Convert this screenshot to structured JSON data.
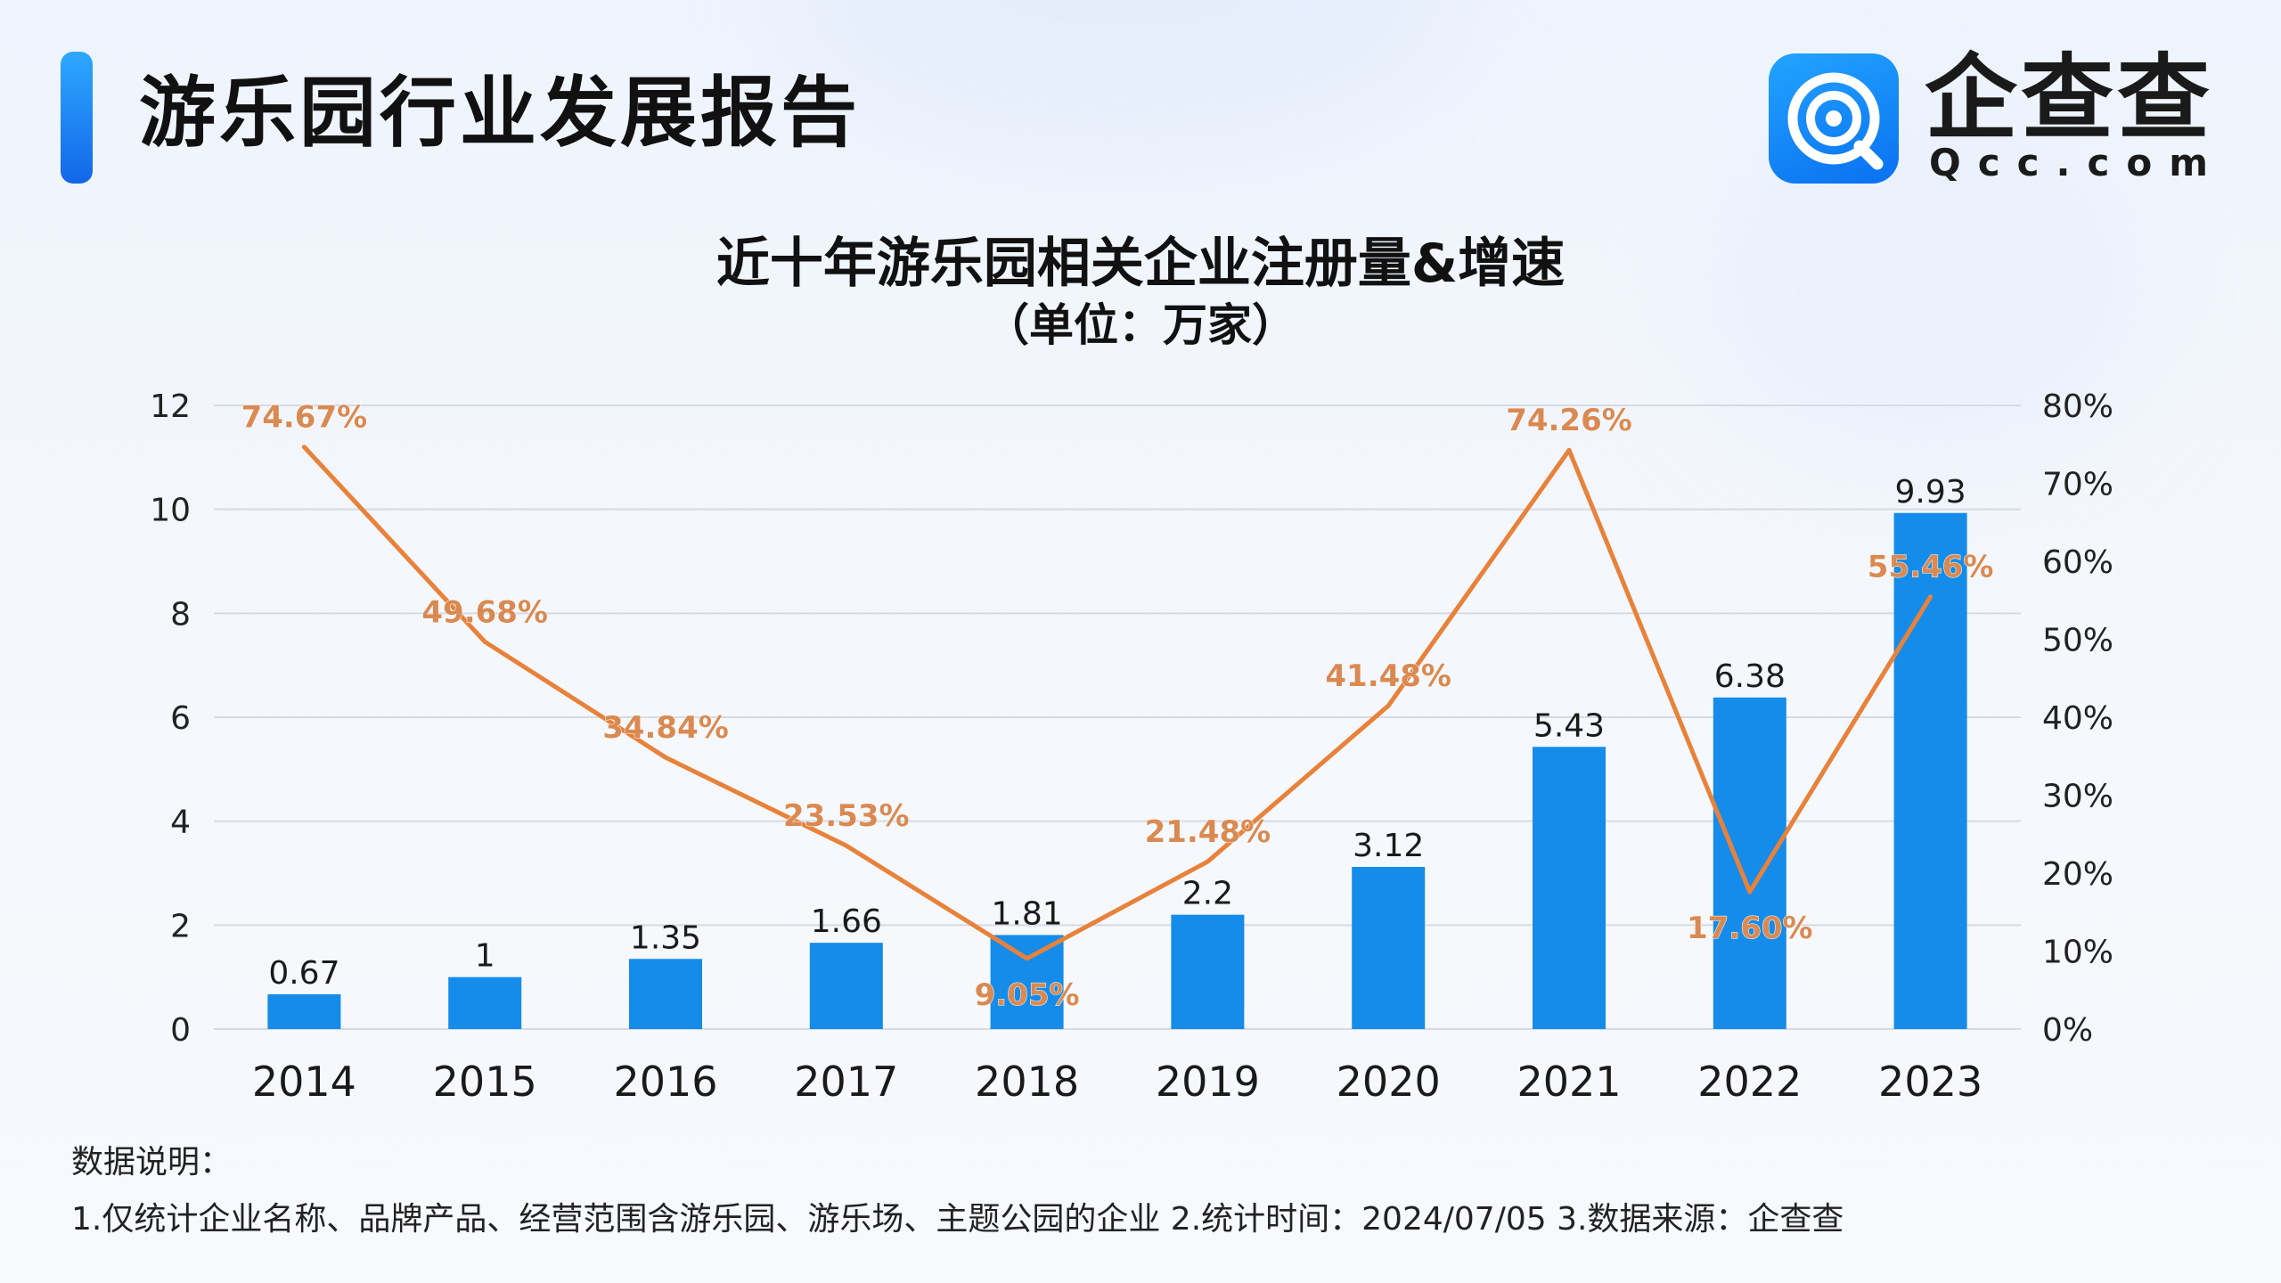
{
  "header": {
    "title": "游乐园行业发展报告"
  },
  "logo": {
    "name": "企查查",
    "domain": "Qcc.com",
    "icon": "qcc-logo-icon"
  },
  "notes": {
    "heading": "数据说明：",
    "text": "1.仅统计企业名称、品牌产品、经营范围含游乐园、游乐场、主题公园的企业  2.统计时间：2024/07/05   3.数据来源：企查查"
  },
  "colors": {
    "accent": "#1a7fe8",
    "bar": "#158ce9",
    "line": "#e8823a",
    "line_label": "#d98a52",
    "grid": "#d6dbe3",
    "text": "#1a1a1a"
  },
  "chart_data": {
    "type": "bar",
    "title": "近十年游乐园相关企业注册量&增速",
    "subtitle": "（单位：万家）",
    "categories": [
      "2014",
      "2015",
      "2016",
      "2017",
      "2018",
      "2019",
      "2020",
      "2021",
      "2022",
      "2023"
    ],
    "series": [
      {
        "kind": "bar",
        "axis": "left",
        "values": [
          0.67,
          1,
          1.35,
          1.66,
          1.81,
          2.2,
          3.12,
          5.43,
          6.38,
          9.93
        ],
        "labels": [
          "0.67",
          "1",
          "1.35",
          "1.66",
          "1.81",
          "2.2",
          "3.12",
          "5.43",
          "6.38",
          "9.93"
        ]
      },
      {
        "kind": "line",
        "axis": "right",
        "values": [
          74.67,
          49.68,
          34.84,
          23.53,
          9.05,
          21.48,
          41.48,
          74.26,
          17.6,
          55.46
        ],
        "labels": [
          "74.67%",
          "49.68%",
          "34.84%",
          "23.53%",
          "9.05%",
          "21.48%",
          "41.48%",
          "74.26%",
          "17.60%",
          "55.46%"
        ]
      }
    ],
    "y_left": {
      "range": [
        0,
        12
      ],
      "ticks": [
        "0",
        "2",
        "4",
        "6",
        "8",
        "10",
        "12"
      ]
    },
    "y_right": {
      "range": [
        0,
        80
      ],
      "ticks": [
        "0%",
        "10%",
        "20%",
        "30%",
        "40%",
        "50%",
        "60%",
        "70%",
        "80%"
      ]
    },
    "grid": true,
    "legend": "none"
  }
}
